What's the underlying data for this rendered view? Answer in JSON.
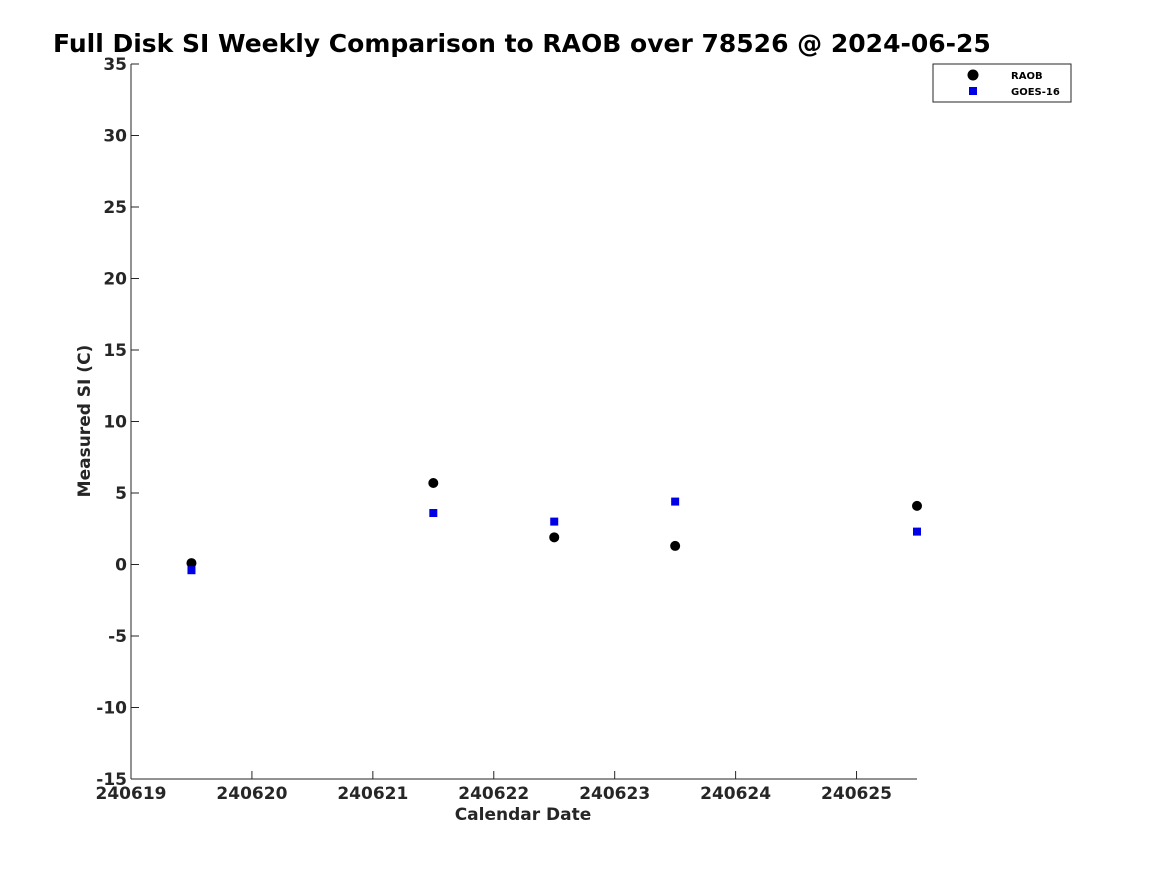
{
  "chart_data": {
    "type": "scatter",
    "title": "Full Disk SI Weekly Comparison to RAOB over 78526 @ 2024-06-25",
    "xlabel": "Calendar Date",
    "ylabel": "Measured SI (C)",
    "xlim": [
      240619,
      240625.5
    ],
    "ylim": [
      -15,
      35
    ],
    "x_ticks": [
      240619,
      240620,
      240621,
      240622,
      240623,
      240624,
      240625
    ],
    "x_tick_labels": [
      "240619",
      "240620",
      "240621",
      "240622",
      "240623",
      "240624",
      "240625"
    ],
    "y_ticks": [
      -15,
      -10,
      -5,
      0,
      5,
      10,
      15,
      20,
      25,
      30,
      35
    ],
    "y_tick_labels": [
      "-15",
      "-10",
      "-5",
      "0",
      "5",
      "10",
      "15",
      "20",
      "25",
      "30",
      "35"
    ],
    "grid": false,
    "legend_position": "top-right",
    "series": [
      {
        "name": "RAOB",
        "marker": "circle",
        "color": "#000000",
        "points": [
          {
            "x": 240619.5,
            "y": 0.1
          },
          {
            "x": 240621.5,
            "y": 5.7
          },
          {
            "x": 240622.5,
            "y": 1.9
          },
          {
            "x": 240623.5,
            "y": 1.3
          },
          {
            "x": 240625.5,
            "y": 4.1
          }
        ]
      },
      {
        "name": "GOES-16",
        "marker": "square",
        "color": "#0000e6",
        "points": [
          {
            "x": 240619.5,
            "y": -0.4
          },
          {
            "x": 240621.5,
            "y": 3.6
          },
          {
            "x": 240622.5,
            "y": 3.0
          },
          {
            "x": 240623.5,
            "y": 4.4
          },
          {
            "x": 240625.5,
            "y": 2.3
          }
        ]
      }
    ]
  }
}
